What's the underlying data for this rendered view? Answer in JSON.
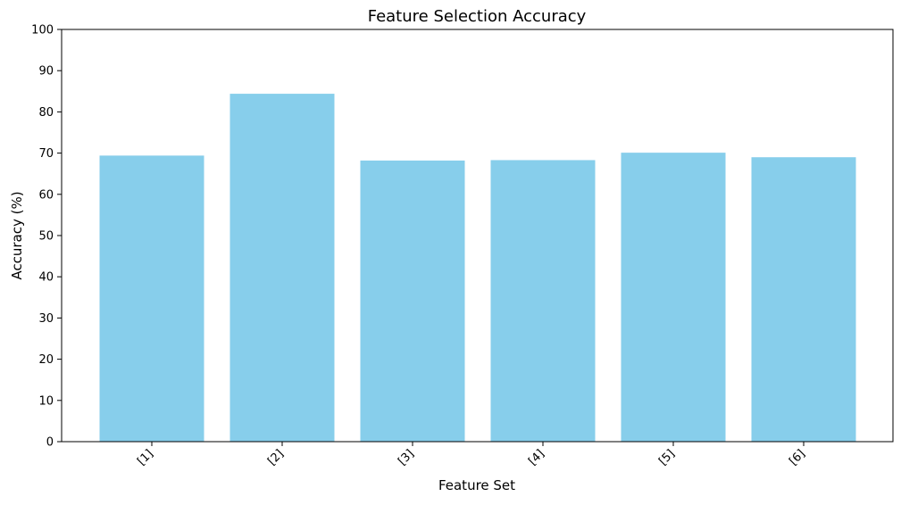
{
  "chart_data": {
    "type": "bar",
    "title": "Feature Selection Accuracy",
    "xlabel": "Feature Set",
    "ylabel": "Accuracy (%)",
    "categories": [
      "[1]",
      "[2]",
      "[3]",
      "[4]",
      "[5]",
      "[6]"
    ],
    "values": [
      69.4,
      84.4,
      68.2,
      68.3,
      70.1,
      69.0
    ],
    "ylim": [
      0,
      100
    ],
    "yticks": [
      0,
      10,
      20,
      30,
      40,
      50,
      60,
      70,
      80,
      90,
      100
    ],
    "grid": false,
    "legend": "none",
    "bar_color": "#87CEEB"
  }
}
